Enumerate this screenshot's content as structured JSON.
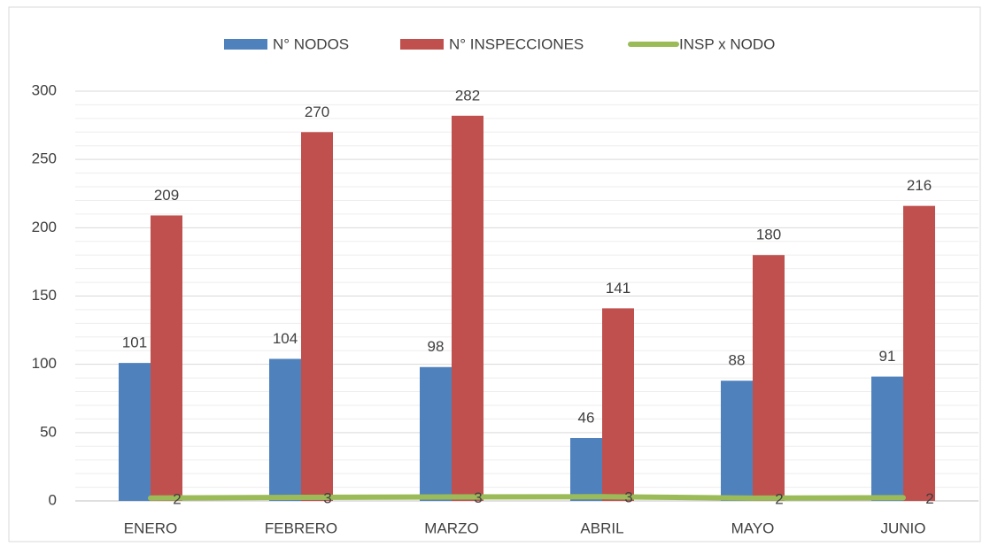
{
  "chart_data": {
    "type": "bar_line",
    "categories": [
      "ENERO",
      "FEBRERO",
      "MARZO",
      "ABRIL",
      "MAYO",
      "JUNIO"
    ],
    "series": [
      {
        "name": "N° NODOS",
        "color": "#4f81bd",
        "values": [
          101,
          104,
          98,
          46,
          88,
          91
        ]
      },
      {
        "name": "N° INSPECCIONES",
        "color": "#c0504d",
        "values": [
          209,
          270,
          282,
          141,
          180,
          216
        ]
      },
      {
        "name": "INSP x NODO",
        "color": "#9bbb59",
        "type": "line",
        "values": [
          2.07,
          2.6,
          2.88,
          3.07,
          2.05,
          2.37
        ],
        "value_labels": [
          "2",
          "3",
          "3",
          "3",
          "2",
          "2"
        ]
      }
    ],
    "ylim": [
      0,
      300
    ],
    "yticks": [
      0,
      50,
      100,
      150,
      200,
      250,
      300
    ],
    "grid": true,
    "minor_grid": true,
    "legend": "top"
  }
}
